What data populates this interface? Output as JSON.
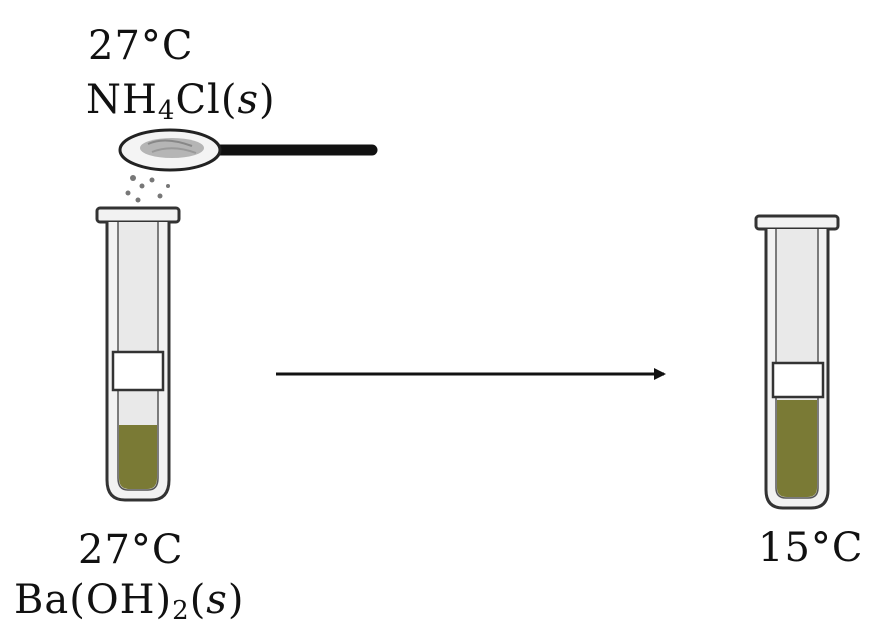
{
  "top_left": {
    "temp": "27°C",
    "reagent": {
      "base": "NH",
      "sub": "4",
      "rest": "Cl(",
      "state": "s",
      "close": ")"
    }
  },
  "bottom_left": {
    "temp": "27°C",
    "reagent": {
      "base": "Ba(OH)",
      "sub": "2",
      "open": "(",
      "state": "s",
      "close": ")"
    }
  },
  "bottom_right": {
    "temp": "15°C"
  },
  "colors": {
    "liquid": "#7a7a35",
    "tube_outline": "#333333",
    "glass": "#f2f2f2",
    "arrow": "#111111"
  }
}
